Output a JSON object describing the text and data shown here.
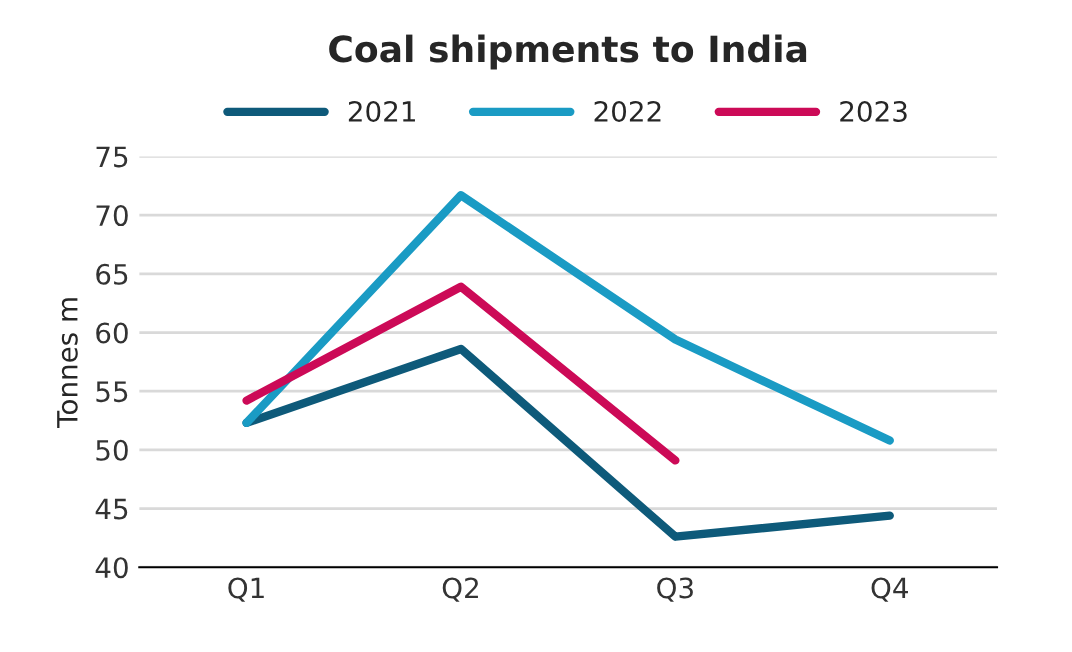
{
  "chart_data": {
    "type": "line",
    "title": "Coal shipments to India",
    "ylabel": "Tonnes m",
    "categories": [
      "Q1",
      "Q2",
      "Q3",
      "Q4"
    ],
    "series": [
      {
        "name": "2021",
        "color": "#0e5a7a",
        "values": [
          52.3,
          58.6,
          42.6,
          44.4
        ]
      },
      {
        "name": "2022",
        "color": "#1a9bc4",
        "values": [
          52.3,
          71.7,
          59.4,
          50.8
        ]
      },
      {
        "name": "2023",
        "color": "#cc0a57",
        "values": [
          54.2,
          63.9,
          49.1,
          null
        ]
      }
    ],
    "ylim": [
      40,
      75
    ],
    "yticks": [
      40,
      45,
      50,
      55,
      60,
      65,
      70,
      75
    ],
    "grid": "y",
    "legend": "top",
    "marker": "none",
    "line_style": "solid"
  }
}
